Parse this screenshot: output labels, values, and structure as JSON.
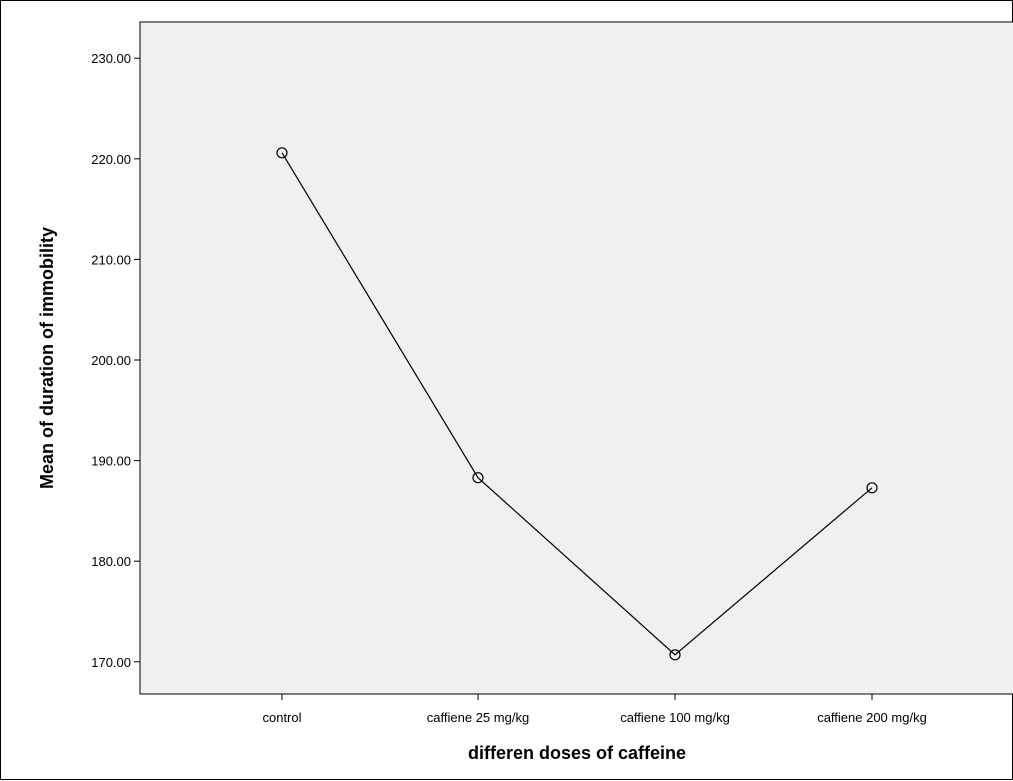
{
  "chart_data": {
    "type": "line",
    "categories": [
      "control",
      "caffiene 25 mg/kg",
      "caffiene 100 mg/kg",
      "caffiene 200 mg/kg"
    ],
    "series": [
      {
        "values": [
          220.6,
          188.3,
          170.7,
          187.3
        ]
      }
    ],
    "yticks": [
      "170.00",
      "180.00",
      "190.00",
      "200.00",
      "210.00",
      "220.00",
      "230.00"
    ],
    "ylim": [
      166.8,
      233.6
    ],
    "xlabel": "differen doses of caffeine",
    "ylabel": "Mean of duration of immobility",
    "grid": false,
    "marker": "open-circle",
    "colors": {
      "plot_background": "#f0f0f0",
      "line": "#000000"
    }
  }
}
